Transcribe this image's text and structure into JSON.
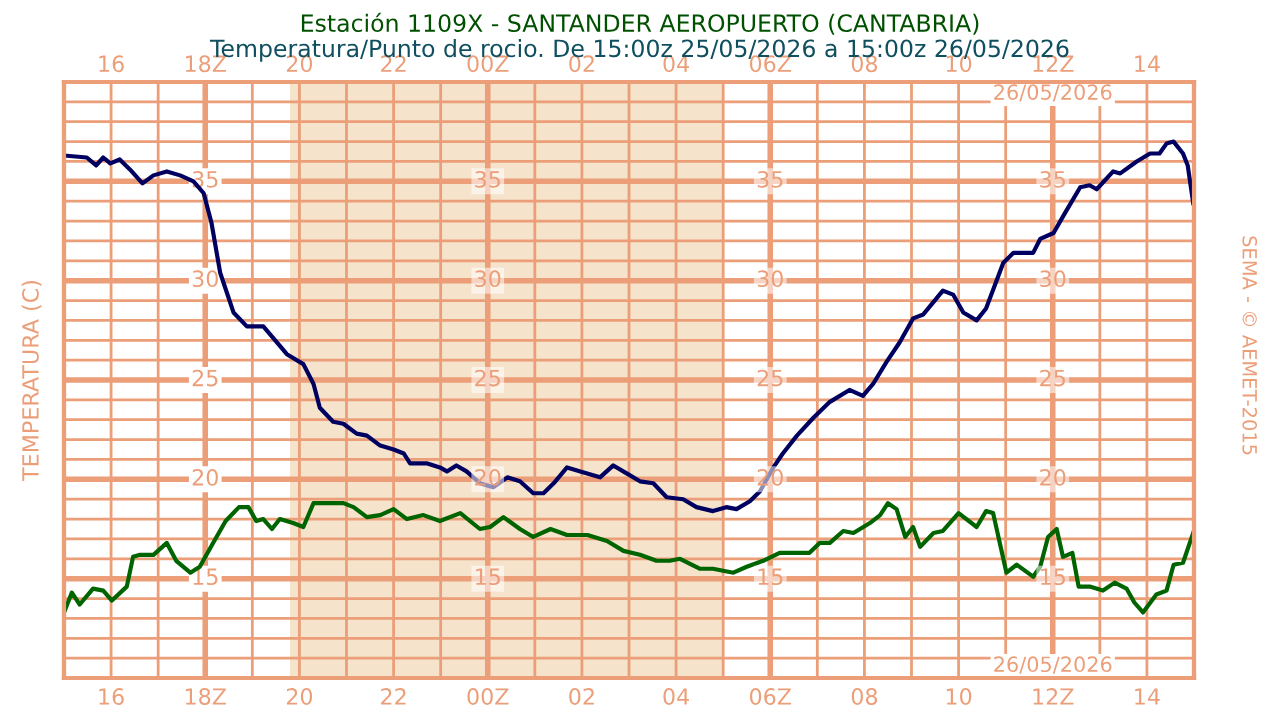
{
  "chart_data": {
    "type": "line",
    "title": "Estación 1109X - SANTANDER AEROPUERTO (CANTABRIA)",
    "subtitle": "Temperatura/Punto de rocio. De 15:00z 25/05/2026 a 15:00z 26/05/2026",
    "ylabel": "TEMPERATURA (C)",
    "annotations": [
      "26/05/2026",
      "26/05/2026",
      "SEMA - © AEMET-2015",
      {
        "text": "15",
        "x": "2026-05-26T00:00",
        "y": 15
      },
      {
        "text": "20",
        "x": "2026-05-26T00:00",
        "y": 20
      },
      {
        "text": "25",
        "x": "2026-05-26T00:00",
        "y": 25
      },
      {
        "text": "30",
        "x": "2026-05-26T00:00",
        "y": 30
      },
      {
        "text": "35",
        "x": "2026-05-26T00:00",
        "y": 35
      },
      {
        "text": "15",
        "x": "2026-05-26T06:00",
        "y": 15
      },
      {
        "text": "20",
        "x": "2026-05-26T06:00",
        "y": 20
      },
      {
        "text": "25",
        "x": "2026-05-26T06:00",
        "y": 25
      },
      {
        "text": "30",
        "x": "2026-05-26T06:00",
        "y": 30
      },
      {
        "text": "35",
        "x": "2026-05-26T06:00",
        "y": 35
      },
      {
        "text": "15",
        "x": "2026-05-26T12:00",
        "y": 15
      },
      {
        "text": "20",
        "x": "2026-05-26T12:00",
        "y": 20
      },
      {
        "text": "25",
        "x": "2026-05-26T12:00",
        "y": 25
      },
      {
        "text": "30",
        "x": "2026-05-26T12:00",
        "y": 30
      },
      {
        "text": "35",
        "x": "2026-05-26T12:00",
        "y": 35
      }
    ],
    "series": [
      {
        "color": "#000060",
        "x": [
          "2026-05-25T15:00",
          "2026-05-25T15:29",
          "2026-05-25T15:41",
          "2026-05-25T15:50",
          "2026-05-25T15:59",
          "2026-05-25T16:11",
          "2026-05-25T16:24",
          "2026-05-25T16:40",
          "2026-05-25T16:54",
          "2026-05-25T17:11",
          "2026-05-25T17:28",
          "2026-05-25T17:45",
          "2026-05-25T17:58",
          "2026-05-25T18:08",
          "2026-05-25T18:19",
          "2026-05-25T18:36",
          "2026-05-25T18:53",
          "2026-05-25T19:14",
          "2026-05-25T19:27",
          "2026-05-25T19:44",
          "2026-05-25T20:05",
          "2026-05-25T20:18",
          "2026-05-25T20:26",
          "2026-05-25T20:43",
          "2026-05-25T20:56",
          "2026-05-25T21:13",
          "2026-05-25T21:26",
          "2026-05-25T21:43",
          "2026-05-25T22:00",
          "2026-05-25T22:13",
          "2026-05-25T22:21",
          "2026-05-25T22:43",
          "2026-05-25T22:59",
          "2026-05-25T23:08",
          "2026-05-25T23:20",
          "2026-05-25T23:33",
          "2026-05-25T23:50",
          "2026-05-26T00:07",
          "2026-05-26T00:25",
          "2026-05-26T00:41",
          "2026-05-26T00:58",
          "2026-05-26T01:11",
          "2026-05-26T01:24",
          "2026-05-26T01:41",
          "2026-05-26T01:58",
          "2026-05-26T02:23",
          "2026-05-26T02:40",
          "2026-05-26T02:57",
          "2026-05-26T03:14",
          "2026-05-26T03:31",
          "2026-05-26T03:48",
          "2026-05-26T04:09",
          "2026-05-26T04:26",
          "2026-05-26T04:47",
          "2026-05-26T05:04",
          "2026-05-26T05:17",
          "2026-05-26T05:34",
          "2026-05-26T05:47",
          "2026-05-26T06:04",
          "2026-05-26T06:16",
          "2026-05-26T06:34",
          "2026-05-26T06:55",
          "2026-05-26T07:16",
          "2026-05-26T07:41",
          "2026-05-26T07:58",
          "2026-05-26T08:11",
          "2026-05-26T08:28",
          "2026-05-26T08:45",
          "2026-05-26T09:02",
          "2026-05-26T09:15",
          "2026-05-26T09:40",
          "2026-05-26T09:53",
          "2026-05-26T10:06",
          "2026-05-26T10:23",
          "2026-05-26T10:35",
          "2026-05-26T10:57",
          "2026-05-26T11:10",
          "2026-05-26T11:35",
          "2026-05-26T11:44",
          "2026-05-26T12:01",
          "2026-05-26T12:17",
          "2026-05-26T12:35",
          "2026-05-26T12:47",
          "2026-05-26T12:56",
          "2026-05-26T13:17",
          "2026-05-26T13:26",
          "2026-05-26T13:47",
          "2026-05-26T14:04",
          "2026-05-26T14:16",
          "2026-05-26T14:25",
          "2026-05-26T14:34",
          "2026-05-26T14:46",
          "2026-05-26T14:52",
          "2026-05-26T14:59"
        ],
        "values": [
          36.3,
          36.2,
          35.8,
          36.2,
          35.9,
          36.1,
          35.6,
          34.9,
          35.3,
          35.5,
          35.3,
          35.0,
          34.4,
          32.9,
          30.4,
          28.4,
          27.7,
          27.7,
          27.1,
          26.3,
          25.8,
          24.8,
          23.6,
          22.9,
          22.8,
          22.3,
          22.2,
          21.7,
          21.5,
          21.3,
          20.8,
          20.8,
          20.6,
          20.4,
          20.7,
          20.4,
          19.8,
          19.6,
          20.1,
          19.9,
          19.3,
          19.3,
          19.8,
          20.6,
          20.4,
          20.1,
          20.7,
          20.3,
          19.9,
          19.8,
          19.1,
          19.0,
          18.6,
          18.4,
          18.6,
          18.5,
          18.9,
          19.4,
          20.6,
          21.3,
          22.2,
          23.1,
          23.9,
          24.5,
          24.2,
          24.8,
          25.9,
          26.9,
          28.1,
          28.3,
          29.5,
          29.3,
          28.4,
          28.0,
          28.6,
          30.9,
          31.4,
          31.4,
          32.1,
          32.4,
          33.5,
          34.7,
          34.8,
          34.6,
          35.5,
          35.4,
          36.0,
          36.4,
          36.4,
          36.9,
          37.0,
          36.4,
          35.8,
          33.9
        ]
      },
      {
        "color": "#006400",
        "x": [
          "2026-05-25T15:00",
          "2026-05-25T15:10",
          "2026-05-25T15:20",
          "2026-05-25T15:37",
          "2026-05-25T15:50",
          "2026-05-25T16:01",
          "2026-05-25T16:20",
          "2026-05-25T16:28",
          "2026-05-25T16:37",
          "2026-05-25T16:54",
          "2026-05-25T17:11",
          "2026-05-25T17:23",
          "2026-05-25T17:41",
          "2026-05-25T17:53",
          "2026-05-25T18:10",
          "2026-05-25T18:26",
          "2026-05-25T18:43",
          "2026-05-25T18:55",
          "2026-05-25T19:05",
          "2026-05-25T19:14",
          "2026-05-25T19:25",
          "2026-05-25T19:35",
          "2026-05-25T19:52",
          "2026-05-25T20:05",
          "2026-05-25T20:18",
          "2026-05-25T20:35",
          "2026-05-25T20:56",
          "2026-05-25T21:09",
          "2026-05-25T21:26",
          "2026-05-25T21:43",
          "2026-05-25T22:00",
          "2026-05-25T22:17",
          "2026-05-25T22:38",
          "2026-05-25T22:59",
          "2026-05-25T23:25",
          "2026-05-25T23:50",
          "2026-05-26T00:03",
          "2026-05-26T00:20",
          "2026-05-26T00:41",
          "2026-05-26T00:58",
          "2026-05-26T01:20",
          "2026-05-26T01:41",
          "2026-05-26T02:07",
          "2026-05-26T02:32",
          "2026-05-26T02:53",
          "2026-05-26T03:14",
          "2026-05-26T03:35",
          "2026-05-26T03:52",
          "2026-05-26T04:05",
          "2026-05-26T04:30",
          "2026-05-26T04:47",
          "2026-05-26T05:13",
          "2026-05-26T05:30",
          "2026-05-26T05:51",
          "2026-05-26T06:12",
          "2026-05-26T06:50",
          "2026-05-26T07:03",
          "2026-05-26T07:16",
          "2026-05-26T07:33",
          "2026-05-26T07:46",
          "2026-05-26T08:07",
          "2026-05-26T08:20",
          "2026-05-26T08:30",
          "2026-05-26T08:41",
          "2026-05-26T08:52",
          "2026-05-26T09:02",
          "2026-05-26T09:11",
          "2026-05-26T09:28",
          "2026-05-26T09:40",
          "2026-05-26T10:00",
          "2026-05-26T10:23",
          "2026-05-26T10:35",
          "2026-05-26T10:44",
          "2026-05-26T11:01",
          "2026-05-26T11:14",
          "2026-05-26T11:35",
          "2026-05-26T11:44",
          "2026-05-26T11:54",
          "2026-05-26T12:05",
          "2026-05-26T12:13",
          "2026-05-26T12:25",
          "2026-05-26T12:33",
          "2026-05-26T12:47",
          "2026-05-26T13:04",
          "2026-05-26T13:19",
          "2026-05-26T13:34",
          "2026-05-26T13:44",
          "2026-05-26T13:55",
          "2026-05-26T14:12",
          "2026-05-26T14:25",
          "2026-05-26T14:34",
          "2026-05-26T14:46",
          "2026-05-26T14:59"
        ],
        "values": [
          13.3,
          14.3,
          13.7,
          14.5,
          14.4,
          13.9,
          14.6,
          16.1,
          16.2,
          16.2,
          16.8,
          15.9,
          15.3,
          15.6,
          16.8,
          17.9,
          18.6,
          18.6,
          17.9,
          18.0,
          17.5,
          18.0,
          17.8,
          17.6,
          18.8,
          18.8,
          18.8,
          18.6,
          18.1,
          18.2,
          18.5,
          18.0,
          18.2,
          17.9,
          18.3,
          17.5,
          17.6,
          18.1,
          17.5,
          17.1,
          17.5,
          17.2,
          17.2,
          16.9,
          16.4,
          16.2,
          15.9,
          15.9,
          16.0,
          15.5,
          15.5,
          15.3,
          15.6,
          15.9,
          16.3,
          16.3,
          16.8,
          16.8,
          17.4,
          17.3,
          17.8,
          18.2,
          18.8,
          18.5,
          17.1,
          17.6,
          16.6,
          17.3,
          17.4,
          18.3,
          17.6,
          18.4,
          18.3,
          15.3,
          15.7,
          15.1,
          15.6,
          17.1,
          17.5,
          16.1,
          16.3,
          14.6,
          14.6,
          14.4,
          14.8,
          14.5,
          13.8,
          13.3,
          14.2,
          14.4,
          15.7,
          15.8,
          17.3
        ]
      }
    ],
    "xlim": [
      "2026-05-25T15:00",
      "2026-05-26T15:00"
    ],
    "ylim": [
      10,
      40
    ],
    "xticks": [
      {
        "value": "2026-05-25T16:00",
        "label": "16"
      },
      {
        "value": "2026-05-25T17:00",
        "label": null
      },
      {
        "value": "2026-05-25T18:00",
        "label": "18Z"
      },
      {
        "value": "2026-05-25T19:00",
        "label": null
      },
      {
        "value": "2026-05-25T20:00",
        "label": "20"
      },
      {
        "value": "2026-05-25T21:00",
        "label": null
      },
      {
        "value": "2026-05-25T22:00",
        "label": "22"
      },
      {
        "value": "2026-05-25T23:00",
        "label": null
      },
      {
        "value": "2026-05-26T00:00",
        "label": "00Z"
      },
      {
        "value": "2026-05-26T01:00",
        "label": null
      },
      {
        "value": "2026-05-26T02:00",
        "label": "02"
      },
      {
        "value": "2026-05-26T03:00",
        "label": null
      },
      {
        "value": "2026-05-26T04:00",
        "label": "04"
      },
      {
        "value": "2026-05-26T05:00",
        "label": null
      },
      {
        "value": "2026-05-26T06:00",
        "label": "06Z"
      },
      {
        "value": "2026-05-26T07:00",
        "label": null
      },
      {
        "value": "2026-05-26T08:00",
        "label": "08"
      },
      {
        "value": "2026-05-26T09:00",
        "label": null
      },
      {
        "value": "2026-05-26T10:00",
        "label": "10"
      },
      {
        "value": "2026-05-26T11:00",
        "label": null
      },
      {
        "value": "2026-05-26T12:00",
        "label": "12Z"
      },
      {
        "value": "2026-05-26T13:00",
        "label": null
      },
      {
        "value": "2026-05-26T14:00",
        "label": "14"
      }
    ],
    "x2lim": [
      "2026-05-25T15:00",
      "2026-05-26T15:00"
    ],
    "x2ticks": [
      {
        "value": "2026-05-25T16:00",
        "label": "16"
      },
      {
        "value": "2026-05-25T18:00",
        "label": "18Z"
      },
      {
        "value": "2026-05-25T20:00",
        "label": "20"
      },
      {
        "value": "2026-05-25T22:00",
        "label": "22"
      },
      {
        "value": "2026-05-26T00:00",
        "label": "00Z"
      },
      {
        "value": "2026-05-26T02:00",
        "label": "02"
      },
      {
        "value": "2026-05-26T04:00",
        "label": "04"
      },
      {
        "value": "2026-05-26T06:00",
        "label": "06Z"
      },
      {
        "value": "2026-05-26T08:00",
        "label": "08"
      },
      {
        "value": "2026-05-26T10:00",
        "label": "10"
      },
      {
        "value": "2026-05-26T12:00",
        "label": "12Z"
      },
      {
        "value": "2026-05-26T14:00",
        "label": "14"
      }
    ],
    "yticks": [
      {
        "value": 11,
        "label": null
      },
      {
        "value": 12,
        "label": null
      },
      {
        "value": 13,
        "label": null
      },
      {
        "value": 14,
        "label": null
      },
      15,
      {
        "value": 16,
        "label": null
      },
      {
        "value": 17,
        "label": null
      },
      {
        "value": 18,
        "label": null
      },
      {
        "value": 19,
        "label": null
      },
      20,
      {
        "value": 21,
        "label": null
      },
      {
        "value": 22,
        "label": null
      },
      {
        "value": 23,
        "label": null
      },
      {
        "value": 24,
        "label": null
      },
      25,
      {
        "value": 26,
        "label": null
      },
      {
        "value": 27,
        "label": null
      },
      {
        "value": 28,
        "label": null
      },
      {
        "value": 29,
        "label": null
      },
      30,
      {
        "value": 31,
        "label": null
      },
      {
        "value": 32,
        "label": null
      },
      {
        "value": 33,
        "label": null
      },
      {
        "value": 34,
        "label": null
      },
      35,
      {
        "value": 36,
        "label": null
      },
      {
        "value": 37,
        "label": null
      },
      {
        "value": 38,
        "label": null
      },
      {
        "value": 39,
        "label": null
      }
    ],
    "bands": [
      {
        "axis": "x",
        "from": "2026-05-25T19:48",
        "to": "2026-05-26T05:00",
        "color": "#f5e3cc"
      }
    ],
    "grid": true
  }
}
